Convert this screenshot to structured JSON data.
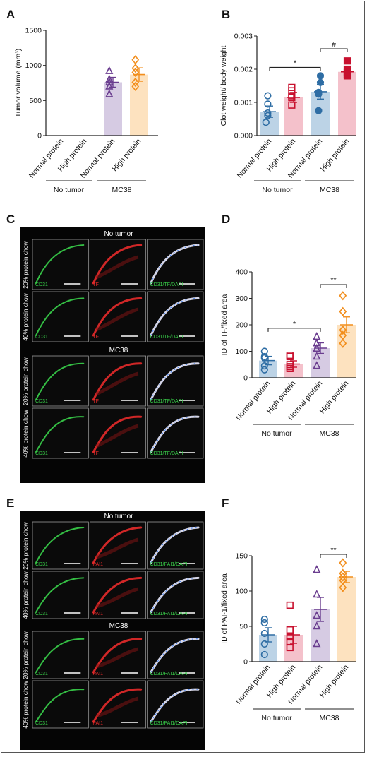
{
  "panel_letters": {
    "A": "A",
    "B": "B",
    "C": "C",
    "D": "D",
    "E": "E",
    "F": "F"
  },
  "group_labels": {
    "no_tumor": "No tumor",
    "mc38": "MC38"
  },
  "chart_data": [
    {
      "id": "A",
      "type": "bar",
      "ylabel": "Tumor volume (mm³)",
      "ylim": [
        0,
        1500
      ],
      "yticks": [
        0,
        500,
        1000,
        1500
      ],
      "categories": [
        "Normal protein",
        "High protein",
        "Normal protein",
        "High protein"
      ],
      "groups": [
        "No tumor",
        "No tumor",
        "MC38",
        "MC38"
      ],
      "values": [
        null,
        null,
        760,
        870
      ],
      "sem": [
        null,
        null,
        70,
        95
      ],
      "colors": [
        "#2e6da4",
        "#c8102e",
        "#6a3d8f",
        "#f28e1c"
      ],
      "fills": [
        "#bcd3e6",
        "#f4c1cb",
        "#d6cbe3",
        "#fde2bf"
      ],
      "markers": [
        "circle",
        "square",
        "triangle",
        "diamond"
      ],
      "points": [
        [],
        [],
        [
          920,
          800,
          760,
          700,
          590
        ],
        [
          1080,
          960,
          900,
          760,
          700
        ]
      ]
    },
    {
      "id": "B",
      "type": "bar",
      "ylabel": "Clot weight/ body weight",
      "ylim": [
        0,
        0.003
      ],
      "yticks": [
        0,
        0.001,
        0.002,
        0.003
      ],
      "ytick_labels": [
        "0.000",
        "0.001",
        "0.002",
        "0.003"
      ],
      "categories": [
        "Normal protein",
        "High protein",
        "Normal protein",
        "High protein"
      ],
      "groups": [
        "No tumor",
        "No tumor",
        "MC38",
        "MC38"
      ],
      "values": [
        0.00072,
        0.00115,
        0.00132,
        0.00192
      ],
      "sem": [
        0.00017,
        0.00015,
        0.00022,
        0.00012
      ],
      "colors": [
        "#2e6da4",
        "#c8102e",
        "#2e6da4",
        "#c8102e"
      ],
      "fills": [
        "#bcd3e6",
        "#f4c1cb",
        "#bcd3e6",
        "#f4c1cb"
      ],
      "markers": [
        "circle-open",
        "square-open",
        "circle-filled",
        "square-filled"
      ],
      "points": [
        [
          0.0012,
          0.00095,
          0.00068,
          0.0006,
          0.0004
        ],
        [
          0.00145,
          0.00135,
          0.0012,
          0.00115,
          0.00092
        ],
        [
          0.0018,
          0.0016,
          0.0013,
          0.00125,
          0.00075
        ],
        [
          0.00225,
          0.002,
          0.0019,
          0.00185,
          0.0018
        ]
      ],
      "significance": [
        {
          "from": 0,
          "to": 2,
          "label": "*"
        },
        {
          "from": 2,
          "to": 3,
          "label": "#"
        }
      ]
    },
    {
      "id": "D",
      "type": "bar",
      "ylabel": "ID of TF/fixed area",
      "ylim": [
        0,
        400
      ],
      "yticks": [
        0,
        100,
        200,
        300,
        400
      ],
      "categories": [
        "Normal protein",
        "High protein",
        "Normal protein",
        "High protein"
      ],
      "groups": [
        "No tumor",
        "No tumor",
        "MC38",
        "MC38"
      ],
      "values": [
        65,
        52,
        112,
        200
      ],
      "sem": [
        16,
        12,
        20,
        30
      ],
      "colors": [
        "#2e6da4",
        "#c8102e",
        "#6a3d8f",
        "#f28e1c"
      ],
      "fills": [
        "#bcd3e6",
        "#f4c1cb",
        "#d6cbe3",
        "#fde2bf"
      ],
      "markers": [
        "circle",
        "square",
        "triangle",
        "diamond"
      ],
      "points": [
        [
          100,
          80,
          75,
          45,
          30
        ],
        [
          85,
          80,
          50,
          42,
          35
        ],
        [
          155,
          130,
          110,
          80,
          45
        ],
        [
          310,
          250,
          180,
          160,
          130
        ]
      ],
      "significance": [
        {
          "from": 0,
          "to": 2,
          "label": "*"
        },
        {
          "from": 2,
          "to": 3,
          "label": "**"
        }
      ]
    },
    {
      "id": "F",
      "type": "bar",
      "ylabel": "ID of PAI-1/fixed area",
      "ylim": [
        0,
        150
      ],
      "yticks": [
        0,
        50,
        100,
        150
      ],
      "categories": [
        "Normal protein",
        "High protein",
        "Normal protein",
        "High protein"
      ],
      "groups": [
        "No tumor",
        "No tumor",
        "MC38",
        "MC38"
      ],
      "values": [
        38,
        38,
        74,
        120
      ],
      "sem": [
        10,
        12,
        17,
        8
      ],
      "colors": [
        "#2e6da4",
        "#c8102e",
        "#6a3d8f",
        "#f28e1c"
      ],
      "fills": [
        "#bcd3e6",
        "#f4c1cb",
        "#d6cbe3",
        "#fde2bf"
      ],
      "markers": [
        "circle",
        "square",
        "triangle",
        "diamond"
      ],
      "points": [
        [
          60,
          55,
          40,
          25,
          10
        ],
        [
          80,
          45,
          35,
          28,
          20
        ],
        [
          130,
          95,
          65,
          50,
          25
        ],
        [
          140,
          125,
          120,
          115,
          105
        ]
      ],
      "significance": [
        {
          "from": 2,
          "to": 3,
          "label": "**"
        }
      ]
    }
  ],
  "micrographs": [
    {
      "id": "C",
      "sections": [
        {
          "title": "No tumor",
          "rows": [
            {
              "label": "20% protein chow",
              "cells": [
                "CD31",
                "TF",
                "CD31/TF/DAPI"
              ]
            },
            {
              "label": "40% protein chow",
              "cells": [
                "CD31",
                "TF",
                "CD31/TF/DAPI"
              ]
            }
          ]
        },
        {
          "title": "MC38",
          "rows": [
            {
              "label": "20% protein chow",
              "cells": [
                "CD31",
                "TF",
                "CD31/TF/DAPI"
              ]
            },
            {
              "label": "40% protein chow",
              "cells": [
                "CD31",
                "TF",
                "CD31/TF/DAPI"
              ]
            }
          ]
        }
      ]
    },
    {
      "id": "E",
      "sections": [
        {
          "title": "No tumor",
          "rows": [
            {
              "label": "20% protein chow",
              "cells": [
                "CD31",
                "PAI1",
                "CD31/PAI1/DAPI"
              ]
            },
            {
              "label": "40% protein chow",
              "cells": [
                "CD31",
                "PAI1",
                "CD31/PAI1/DAPI"
              ]
            }
          ]
        },
        {
          "title": "MC38",
          "rows": [
            {
              "label": "20% protein chow",
              "cells": [
                "CD31",
                "PAI1",
                "CD31/PAI1/DAPI"
              ]
            },
            {
              "label": "40% protein chow",
              "cells": [
                "CD31",
                "PAI1",
                "CD31/PAI1/DAPI"
              ]
            }
          ]
        }
      ]
    }
  ]
}
